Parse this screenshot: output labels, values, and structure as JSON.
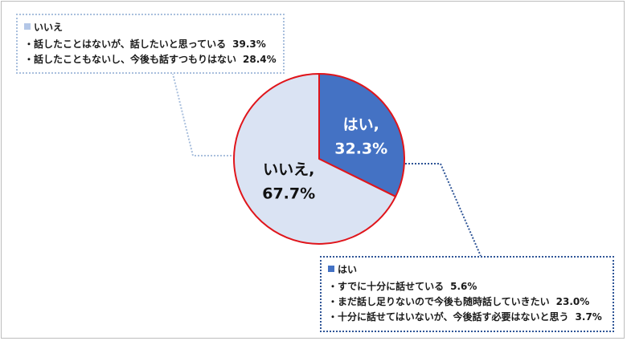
{
  "chart_data": {
    "type": "pie",
    "slices": [
      {
        "label": "はい",
        "value": 32.3,
        "display": "32.3%",
        "color": "#4472c4",
        "text_color": "#ffffff"
      },
      {
        "label": "いいえ",
        "value": 67.7,
        "display": "67.7%",
        "color": "#dae3f3",
        "text_color": "#111111"
      }
    ],
    "border_color": "#e0151b",
    "breakdowns": {
      "no": {
        "title": "いいえ",
        "swatch": "#b4c7e7",
        "items": [
          {
            "text": "・話したことはないが、話したいと思っている",
            "value": "39.3%"
          },
          {
            "text": "・話したこともないし、今後も話すつもりはない",
            "value": "28.4%"
          }
        ]
      },
      "yes": {
        "title": "はい",
        "swatch": "#4472c4",
        "items": [
          {
            "text": "・すでに十分に話せている",
            "value": "5.6%"
          },
          {
            "text": "・まだ話し足りないので今後も随時話していきたい",
            "value": "23.0%"
          },
          {
            "text": "・十分に話せてはいないが、今後話す必要はないと思う",
            "value": "3.7%"
          }
        ]
      }
    }
  }
}
